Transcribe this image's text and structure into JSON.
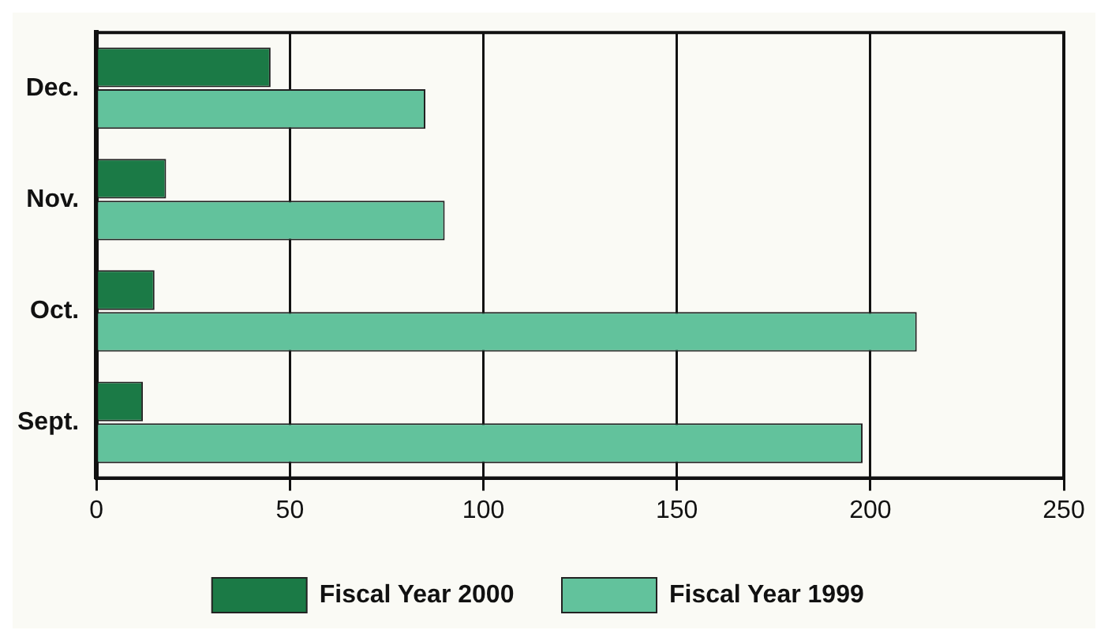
{
  "chart_data": {
    "type": "bar",
    "orientation": "horizontal",
    "categories": [
      "Dec.",
      "Nov.",
      "Oct.",
      "Sept."
    ],
    "series": [
      {
        "name": "Fiscal Year 2000",
        "color": "#1b7a46",
        "values": [
          45,
          18,
          15,
          12
        ]
      },
      {
        "name": "Fiscal Year 1999",
        "color": "#62c29c",
        "values": [
          85,
          90,
          212,
          198
        ]
      }
    ],
    "xlim": [
      0,
      250
    ],
    "xticks": [
      0,
      50,
      100,
      150,
      200,
      250
    ],
    "grid": "x",
    "legend": "bottom"
  }
}
